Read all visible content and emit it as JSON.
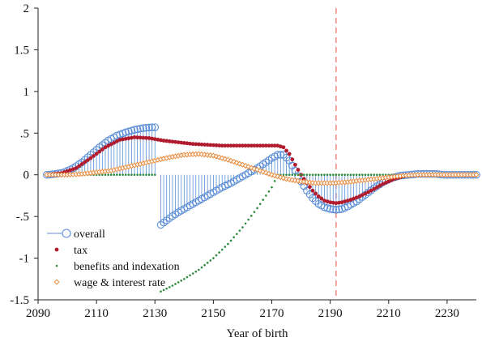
{
  "chart_data": {
    "type": "line",
    "title": "",
    "xlabel": "Year of birth",
    "ylabel": "",
    "xlim": [
      2090,
      2240
    ],
    "ylim": [
      -1.5,
      2
    ],
    "xticks": [
      2090,
      2110,
      2130,
      2150,
      2170,
      2190,
      2210,
      2230
    ],
    "yticks": [
      {
        "value": 2,
        "label": "2"
      },
      {
        "value": 1.5,
        "label": "1.5"
      },
      {
        "value": 1,
        "label": "1"
      },
      {
        "value": 0.5,
        "label": ".5"
      },
      {
        "value": 0,
        "label": "0"
      },
      {
        "value": -0.5,
        "label": "-.5"
      },
      {
        "value": -1,
        "label": "-1"
      },
      {
        "value": -1.5,
        "label": "-1.5"
      }
    ],
    "grid": false,
    "legend": "bottom-left",
    "reference_line": {
      "x": 2192,
      "color": "#f08080",
      "style": "dashed"
    },
    "series": [
      {
        "name": "overall",
        "marker": "hollow-circle-with-stem",
        "color": "#5b8ed6",
        "points": [
          [
            2093,
            0.0
          ],
          [
            2096,
            0.01
          ],
          [
            2099,
            0.03
          ],
          [
            2102,
            0.08
          ],
          [
            2105,
            0.15
          ],
          [
            2108,
            0.24
          ],
          [
            2111,
            0.33
          ],
          [
            2114,
            0.41
          ],
          [
            2117,
            0.47
          ],
          [
            2120,
            0.51
          ],
          [
            2123,
            0.54
          ],
          [
            2126,
            0.56
          ],
          [
            2129,
            0.57
          ],
          [
            2130,
            0.57
          ],
          [
            2132,
            -0.6
          ],
          [
            2135,
            -0.52
          ],
          [
            2138,
            -0.45
          ],
          [
            2141,
            -0.39
          ],
          [
            2144,
            -0.33
          ],
          [
            2147,
            -0.27
          ],
          [
            2150,
            -0.21
          ],
          [
            2153,
            -0.15
          ],
          [
            2156,
            -0.1
          ],
          [
            2159,
            -0.04
          ],
          [
            2162,
            0.02
          ],
          [
            2165,
            0.08
          ],
          [
            2168,
            0.15
          ],
          [
            2170,
            0.2
          ],
          [
            2172,
            0.24
          ],
          [
            2174,
            0.24
          ],
          [
            2176,
            0.17
          ],
          [
            2178,
            0.05
          ],
          [
            2180,
            -0.08
          ],
          [
            2182,
            -0.19
          ],
          [
            2184,
            -0.28
          ],
          [
            2186,
            -0.35
          ],
          [
            2188,
            -0.39
          ],
          [
            2190,
            -0.41
          ],
          [
            2192,
            -0.42
          ],
          [
            2194,
            -0.41
          ],
          [
            2196,
            -0.38
          ],
          [
            2199,
            -0.32
          ],
          [
            2202,
            -0.24
          ],
          [
            2205,
            -0.16
          ],
          [
            2208,
            -0.09
          ],
          [
            2211,
            -0.04
          ],
          [
            2214,
            -0.01
          ],
          [
            2217,
            0.0
          ],
          [
            2220,
            0.01
          ],
          [
            2223,
            0.01
          ],
          [
            2226,
            0.01
          ],
          [
            2229,
            0.0
          ],
          [
            2232,
            0.0
          ],
          [
            2235,
            0.0
          ],
          [
            2238,
            0.0
          ],
          [
            2240,
            0.0
          ]
        ]
      },
      {
        "name": "tax",
        "marker": "filled-dot",
        "color": "#b01c2e",
        "points": [
          [
            2093,
            0.0
          ],
          [
            2098,
            0.02
          ],
          [
            2103,
            0.08
          ],
          [
            2108,
            0.2
          ],
          [
            2113,
            0.33
          ],
          [
            2118,
            0.42
          ],
          [
            2123,
            0.45
          ],
          [
            2128,
            0.44
          ],
          [
            2133,
            0.41
          ],
          [
            2138,
            0.39
          ],
          [
            2143,
            0.37
          ],
          [
            2148,
            0.36
          ],
          [
            2153,
            0.35
          ],
          [
            2158,
            0.35
          ],
          [
            2163,
            0.35
          ],
          [
            2168,
            0.35
          ],
          [
            2172,
            0.35
          ],
          [
            2174,
            0.33
          ],
          [
            2176,
            0.25
          ],
          [
            2178,
            0.12
          ],
          [
            2180,
            0.0
          ],
          [
            2182,
            -0.1
          ],
          [
            2184,
            -0.19
          ],
          [
            2186,
            -0.26
          ],
          [
            2188,
            -0.31
          ],
          [
            2190,
            -0.33
          ],
          [
            2192,
            -0.34
          ],
          [
            2194,
            -0.33
          ],
          [
            2197,
            -0.3
          ],
          [
            2200,
            -0.26
          ],
          [
            2204,
            -0.19
          ],
          [
            2208,
            -0.11
          ],
          [
            2212,
            -0.05
          ],
          [
            2216,
            -0.01
          ],
          [
            2220,
            0.0
          ],
          [
            2225,
            0.0
          ],
          [
            2230,
            0.0
          ],
          [
            2235,
            0.0
          ],
          [
            2240,
            0.0
          ]
        ]
      },
      {
        "name": "benefits and indexation",
        "marker": "small-dot",
        "color": "#2e8b3e",
        "points": [
          [
            2093,
            0.0
          ],
          [
            2100,
            0.0
          ],
          [
            2110,
            0.0
          ],
          [
            2120,
            0.0
          ],
          [
            2130,
            0.0
          ],
          [
            2132,
            -1.4
          ],
          [
            2136,
            -1.33
          ],
          [
            2140,
            -1.25
          ],
          [
            2145,
            -1.14
          ],
          [
            2150,
            -1.0
          ],
          [
            2155,
            -0.83
          ],
          [
            2160,
            -0.63
          ],
          [
            2165,
            -0.4
          ],
          [
            2170,
            -0.15
          ],
          [
            2172,
            0.0
          ],
          [
            2180,
            0.0
          ],
          [
            2190,
            0.0
          ],
          [
            2200,
            0.0
          ],
          [
            2210,
            0.0
          ],
          [
            2220,
            0.0
          ],
          [
            2230,
            0.0
          ],
          [
            2240,
            0.0
          ]
        ]
      },
      {
        "name": "wage & interest rate",
        "marker": "hollow-diamond",
        "color": "#e8893a",
        "points": [
          [
            2093,
            0.0
          ],
          [
            2100,
            0.0
          ],
          [
            2105,
            0.01
          ],
          [
            2110,
            0.03
          ],
          [
            2115,
            0.05
          ],
          [
            2120,
            0.09
          ],
          [
            2125,
            0.13
          ],
          [
            2130,
            0.17
          ],
          [
            2135,
            0.21
          ],
          [
            2140,
            0.24
          ],
          [
            2145,
            0.25
          ],
          [
            2150,
            0.23
          ],
          [
            2155,
            0.18
          ],
          [
            2160,
            0.12
          ],
          [
            2165,
            0.06
          ],
          [
            2170,
            0.0
          ],
          [
            2175,
            -0.05
          ],
          [
            2180,
            -0.08
          ],
          [
            2185,
            -0.1
          ],
          [
            2190,
            -0.1
          ],
          [
            2195,
            -0.09
          ],
          [
            2200,
            -0.07
          ],
          [
            2205,
            -0.05
          ],
          [
            2210,
            -0.03
          ],
          [
            2215,
            -0.01
          ],
          [
            2220,
            0.0
          ],
          [
            2225,
            0.0
          ],
          [
            2230,
            0.0
          ],
          [
            2235,
            0.0
          ],
          [
            2240,
            0.0
          ]
        ]
      }
    ]
  }
}
